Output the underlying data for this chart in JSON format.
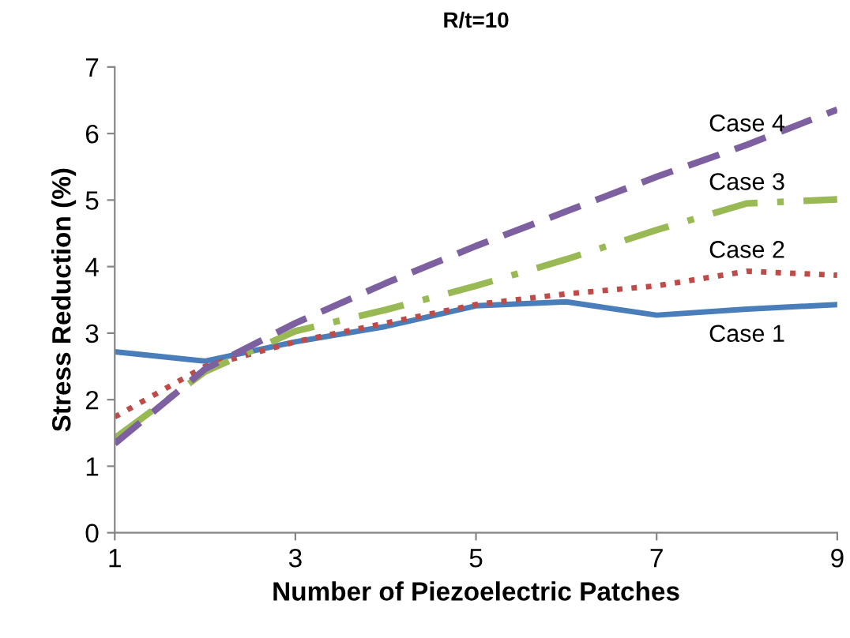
{
  "chart_data": {
    "type": "line",
    "title": "R/t=10",
    "xlabel": "Number of Piezoelectric Patches",
    "ylabel": "Stress Reduction (%)",
    "x": [
      1,
      2,
      3,
      4,
      5,
      6,
      7,
      8,
      9
    ],
    "xlim": [
      1,
      9
    ],
    "xticks": [
      1,
      3,
      5,
      7,
      9
    ],
    "ylim": [
      0,
      7
    ],
    "yticks": [
      0,
      1,
      2,
      3,
      4,
      5,
      6,
      7
    ],
    "grid": false,
    "legend": false,
    "marker": "none",
    "series": [
      {
        "name": "Case 1",
        "color": "#4a7ebb",
        "line_style": "solid",
        "values": [
          2.72,
          2.58,
          2.87,
          3.1,
          3.41,
          3.47,
          3.27,
          3.36,
          3.43
        ]
      },
      {
        "name": "Case 2",
        "color": "#be4b48",
        "line_style": "dotted",
        "values": [
          1.74,
          2.5,
          2.87,
          3.15,
          3.43,
          3.59,
          3.71,
          3.93,
          3.87
        ]
      },
      {
        "name": "Case 3",
        "color": "#98b954",
        "line_style": "dashdot",
        "values": [
          1.42,
          2.42,
          3.03,
          3.35,
          3.71,
          4.11,
          4.55,
          4.95,
          5.01
        ]
      },
      {
        "name": "Case 4",
        "color": "#7d60a0",
        "line_style": "dashed",
        "values": [
          1.34,
          2.46,
          3.15,
          3.75,
          4.31,
          4.83,
          5.35,
          5.83,
          6.36
        ]
      }
    ]
  }
}
